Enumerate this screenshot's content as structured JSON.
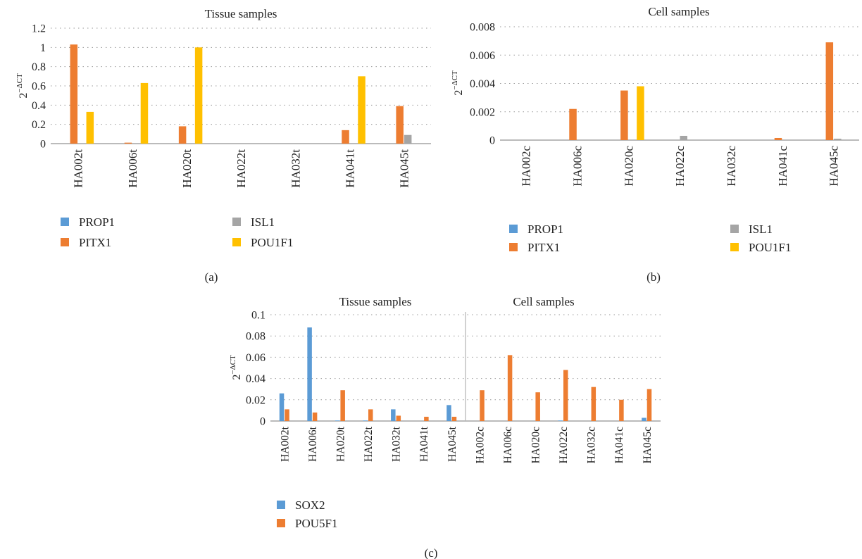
{
  "colors": {
    "PROP1": "#5b9bd5",
    "PITX1": "#ed7d31",
    "ISL1": "#a5a5a5",
    "POU1F1": "#ffc000",
    "SOX2": "#5b9bd5",
    "POU5F1": "#ed7d31"
  },
  "chart_data": [
    {
      "panel_label": "(a)",
      "type": "bar",
      "title": "Tissue samples",
      "ylabel_base": "2",
      "ylabel_exponent": "−ΔCT",
      "ylim": [
        0,
        1.2
      ],
      "yticks": [
        0,
        0.2,
        0.4,
        0.6,
        0.8,
        1,
        1.2
      ],
      "ytick_labels": [
        "0",
        "0.2",
        "0.4",
        "0.6",
        "0.8",
        "1",
        "1.2"
      ],
      "grid": "horizontal dotted",
      "legend_position": "bottom",
      "legend_columns": 2,
      "categories": [
        "HA002t",
        "HA006t",
        "HA020t",
        "HA022t",
        "HA032t",
        "HA041t",
        "HA045t"
      ],
      "series": [
        {
          "name": "PROP1",
          "values": [
            0,
            0,
            0,
            0,
            0,
            0,
            0
          ]
        },
        {
          "name": "PITX1",
          "values": [
            1.03,
            0.01,
            0.18,
            0,
            0,
            0.14,
            0.39
          ]
        },
        {
          "name": "ISL1",
          "values": [
            0,
            0,
            0,
            0,
            0,
            0,
            0.09
          ]
        },
        {
          "name": "POU1F1",
          "values": [
            0.33,
            0.63,
            1.0,
            0,
            0,
            0.7,
            0
          ]
        }
      ]
    },
    {
      "panel_label": "(b)",
      "type": "bar",
      "title": "Cell samples",
      "ylabel_base": "2",
      "ylabel_exponent": "−ΔCT",
      "ylim": [
        0,
        0.008
      ],
      "yticks": [
        0,
        0.002,
        0.004,
        0.006,
        0.008
      ],
      "ytick_labels": [
        "0",
        "0.002",
        "0.004",
        "0.006",
        "0.008"
      ],
      "grid": "horizontal dotted",
      "legend_position": "bottom",
      "legend_columns": 2,
      "categories": [
        "HA002c",
        "HA006c",
        "HA020c",
        "HA022c",
        "HA032c",
        "HA041c",
        "HA045c"
      ],
      "series": [
        {
          "name": "PROP1",
          "values": [
            0,
            0,
            0,
            0,
            0,
            0,
            0
          ]
        },
        {
          "name": "PITX1",
          "values": [
            0,
            0.0022,
            0.0035,
            0,
            0,
            0.00015,
            0.0069
          ]
        },
        {
          "name": "ISL1",
          "values": [
            0,
            0,
            0,
            0.0003,
            0,
            0,
            0.0001
          ]
        },
        {
          "name": "POU1F1",
          "values": [
            0,
            0,
            0.0038,
            0,
            0,
            0,
            0
          ]
        }
      ]
    },
    {
      "panel_label": "(c)",
      "type": "bar",
      "group_titles": [
        "Tissue samples",
        "Cell samples"
      ],
      "ylabel_base": "2",
      "ylabel_exponent": "−ΔCT",
      "ylim": [
        0,
        0.1
      ],
      "yticks": [
        0,
        0.02,
        0.04,
        0.06,
        0.08,
        0.1
      ],
      "ytick_labels": [
        "0",
        "0.02",
        "0.04",
        "0.06",
        "0.08",
        "0.1"
      ],
      "grid": "horizontal dotted",
      "legend_position": "bottom",
      "legend_columns": 1,
      "categories": [
        "HA002t",
        "HA006t",
        "HA020t",
        "HA022t",
        "HA032t",
        "HA041t",
        "HA045t",
        "HA002c",
        "HA006c",
        "HA020c",
        "HA022c",
        "HA032c",
        "HA041c",
        "HA045c"
      ],
      "series": [
        {
          "name": "SOX2",
          "values": [
            0.026,
            0.088,
            0.0005,
            0.0005,
            0.011,
            0,
            0.015,
            0,
            0,
            0,
            0.0005,
            0,
            0,
            0.003
          ]
        },
        {
          "name": "POU5F1",
          "values": [
            0.011,
            0.008,
            0.029,
            0.011,
            0.005,
            0.004,
            0.004,
            0.029,
            0.062,
            0.027,
            0.048,
            0.032,
            0.02,
            0.03
          ]
        }
      ]
    }
  ]
}
